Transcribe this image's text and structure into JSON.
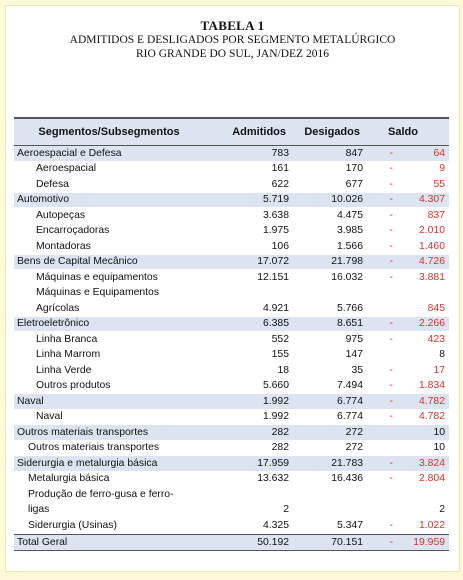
{
  "title": "TABELA 1",
  "subtitle_line1": "ADMITIDOS E DESLIGADOS POR SEGMENTO METALÚRGICO",
  "subtitle_line2": "RIO GRANDE DO SUL, JAN/DEZ 2016",
  "headers": {
    "segmento": "Segmentos/Subsegmentos",
    "admitidos": "Admitidos",
    "desligados": "Desigados",
    "saldo": "Saldo"
  },
  "colors": {
    "group_bg": "#dbe4f0",
    "negative": "#e0302a"
  },
  "rows": [
    {
      "seg": "Aeroespacial e Defesa",
      "level": 0,
      "group": true,
      "adm": "783",
      "des": "847",
      "dash": "-",
      "saldo": "64",
      "neg": true
    },
    {
      "seg": "Aeroespacial",
      "level": 1,
      "group": false,
      "adm": "161",
      "des": "170",
      "dash": "-",
      "saldo": "9",
      "neg": true
    },
    {
      "seg": "Defesa",
      "level": 1,
      "group": false,
      "adm": "622",
      "des": "677",
      "dash": "-",
      "saldo": "55",
      "neg": true
    },
    {
      "seg": "Automotivo",
      "level": 0,
      "group": true,
      "adm": "5.719",
      "des": "10.026",
      "dash": "-",
      "saldo": "4.307",
      "neg": true
    },
    {
      "seg": "Autopeças",
      "level": 1,
      "group": false,
      "adm": "3.638",
      "des": "4.475",
      "dash": "-",
      "saldo": "837",
      "neg": true
    },
    {
      "seg": "Encarroçadoras",
      "level": 1,
      "group": false,
      "adm": "1.975",
      "des": "3.985",
      "dash": "-",
      "saldo": "2.010",
      "neg": true
    },
    {
      "seg": "Montadoras",
      "level": 1,
      "group": false,
      "adm": "106",
      "des": "1.566",
      "dash": "-",
      "saldo": "1.460",
      "neg": true
    },
    {
      "seg": "Bens de Capital Mecânico",
      "level": 0,
      "group": true,
      "adm": "17.072",
      "des": "21.798",
      "dash": "-",
      "saldo": "4.726",
      "neg": true
    },
    {
      "seg": "Máquinas e equipamentos",
      "level": 1,
      "group": false,
      "adm": "12.151",
      "des": "16.032",
      "dash": "-",
      "saldo": "3.881",
      "neg": true
    },
    {
      "seg": "Máquinas e Equipamentos",
      "level": 1,
      "group": false,
      "adm": "",
      "des": "",
      "dash": "",
      "saldo": "",
      "neg": false
    },
    {
      "seg": "Agrícolas",
      "level": 1,
      "group": false,
      "adm": "4.921",
      "des": "5.766",
      "dash": "",
      "saldo": "845",
      "neg": true
    },
    {
      "seg": "Eletroeletrônico",
      "level": 0,
      "group": true,
      "adm": "6.385",
      "des": "8.651",
      "dash": "-",
      "saldo": "2.266",
      "neg": true
    },
    {
      "seg": "Linha Branca",
      "level": 1,
      "group": false,
      "adm": "552",
      "des": "975",
      "dash": "-",
      "saldo": "423",
      "neg": true
    },
    {
      "seg": "Linha Marrom",
      "level": 1,
      "group": false,
      "adm": "155",
      "des": "147",
      "dash": "",
      "saldo": "8",
      "neg": false
    },
    {
      "seg": "Linha Verde",
      "level": 1,
      "group": false,
      "adm": "18",
      "des": "35",
      "dash": "-",
      "saldo": "17",
      "neg": true
    },
    {
      "seg": "Outros produtos",
      "level": 1,
      "group": false,
      "adm": "5.660",
      "des": "7.494",
      "dash": "-",
      "saldo": "1.834",
      "neg": true
    },
    {
      "seg": "Naval",
      "level": 0,
      "group": true,
      "adm": "1.992",
      "des": "6.774",
      "dash": "-",
      "saldo": "4.782",
      "neg": true
    },
    {
      "seg": "Naval",
      "level": 1,
      "group": false,
      "adm": "1.992",
      "des": "6.774",
      "dash": "-",
      "saldo": "4.782",
      "neg": true
    },
    {
      "seg": "Outros materiais transportes",
      "level": 0,
      "group": true,
      "adm": "282",
      "des": "272",
      "dash": "",
      "saldo": "10",
      "neg": false
    },
    {
      "seg": "Outros materiais transportes",
      "level": 2,
      "group": false,
      "adm": "282",
      "des": "272",
      "dash": "",
      "saldo": "10",
      "neg": false
    },
    {
      "seg": "Siderurgia e metalurgia básica",
      "level": 0,
      "group": true,
      "adm": "17.959",
      "des": "21.783",
      "dash": "-",
      "saldo": "3.824",
      "neg": true
    },
    {
      "seg": "Metalurgia básica",
      "level": 2,
      "group": false,
      "adm": "13.632",
      "des": "16.436",
      "dash": "-",
      "saldo": "2.804",
      "neg": true
    },
    {
      "seg": "Produção de ferro-gusa e ferro-",
      "level": 2,
      "group": false,
      "adm": "",
      "des": "",
      "dash": "",
      "saldo": "",
      "neg": false
    },
    {
      "seg": "ligas",
      "level": 2,
      "group": false,
      "adm": "2",
      "des": "",
      "dash": "",
      "saldo": "2",
      "neg": false
    },
    {
      "seg": "Siderurgia (Usinas)",
      "level": 2,
      "group": false,
      "adm": "4.325",
      "des": "5.347",
      "dash": "-",
      "saldo": "1.022",
      "neg": true
    }
  ],
  "total": {
    "seg": "Total Geral",
    "adm": "50.192",
    "des": "70.151",
    "dash": "-",
    "saldo": "19.959",
    "neg": true
  }
}
